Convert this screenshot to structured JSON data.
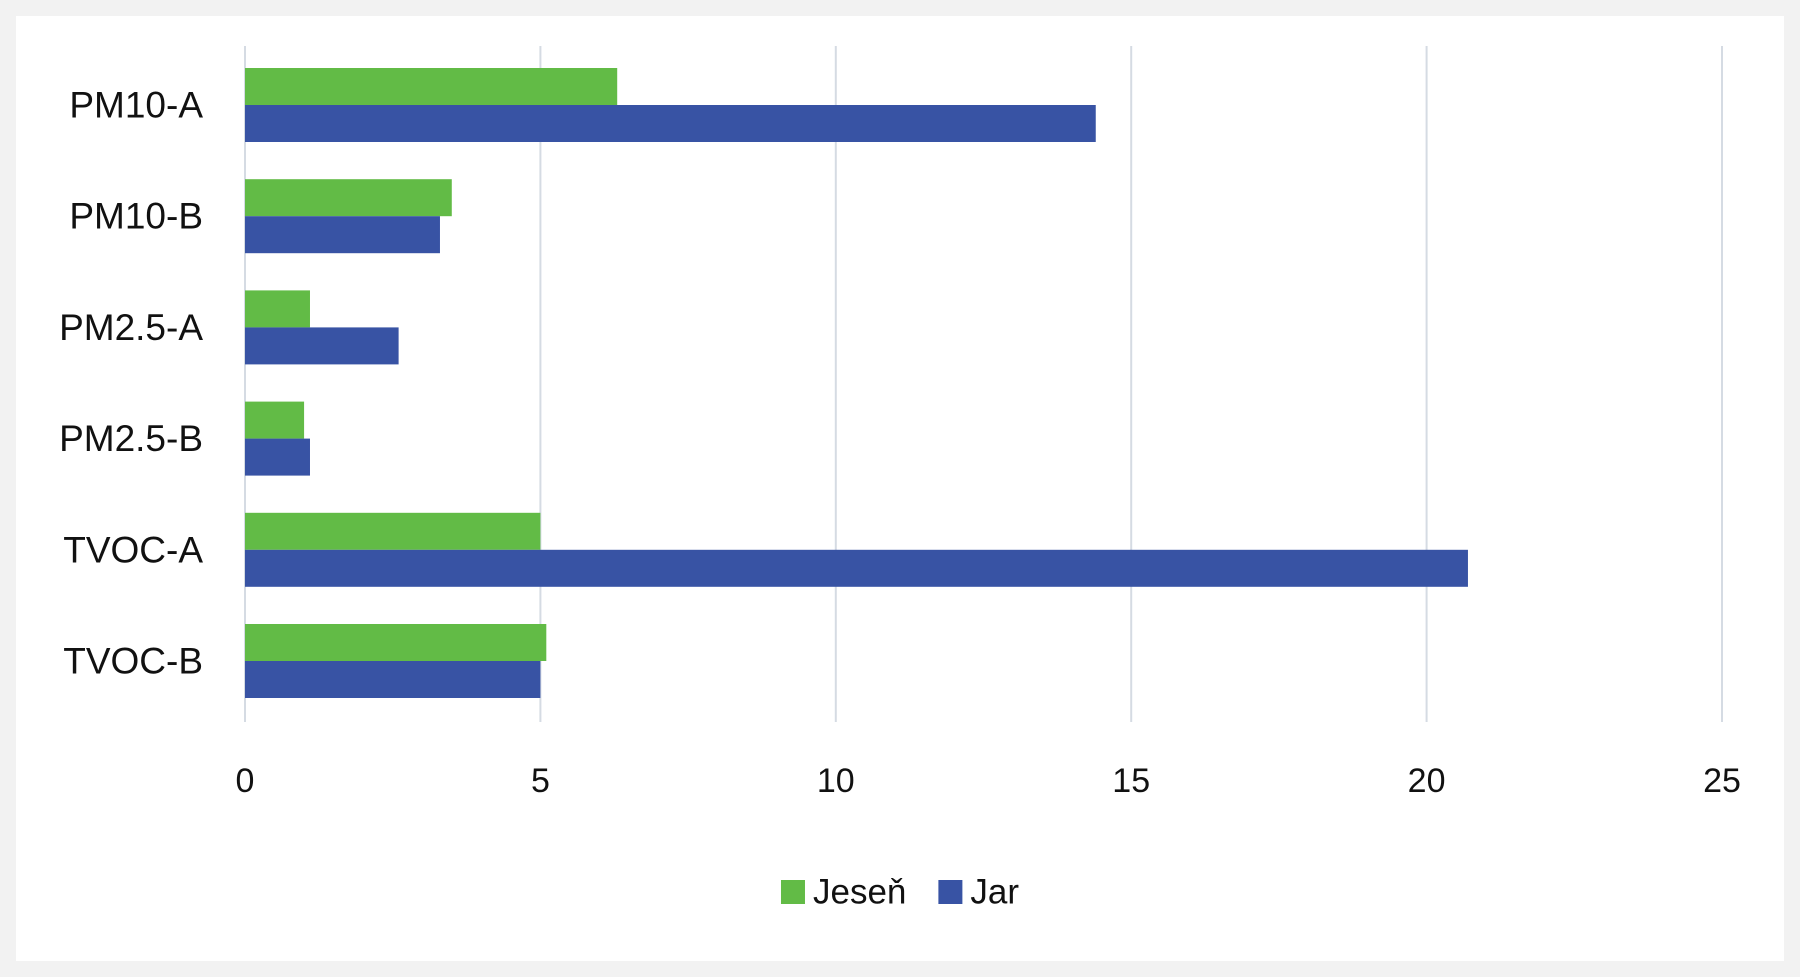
{
  "chart_data": {
    "type": "bar",
    "orientation": "horizontal",
    "title": "",
    "xlabel": "",
    "ylabel": "",
    "categories": [
      "PM10-A",
      "PM10-B",
      "PM2.5-A",
      "PM2.5-B",
      "TVOC-A",
      "TVOC-B"
    ],
    "series": [
      {
        "name": "Jeseň",
        "color": "#62bb46",
        "values": [
          6.3,
          3.5,
          1.1,
          1.0,
          5.0,
          5.1
        ]
      },
      {
        "name": "Jar",
        "color": "#3853a4",
        "values": [
          14.4,
          3.3,
          2.6,
          1.1,
          20.7,
          5.0
        ]
      }
    ],
    "xlim": [
      0,
      25
    ],
    "xticks": [
      0,
      5,
      10,
      15,
      20,
      25
    ],
    "grid": true,
    "legend_position": "bottom-center"
  }
}
